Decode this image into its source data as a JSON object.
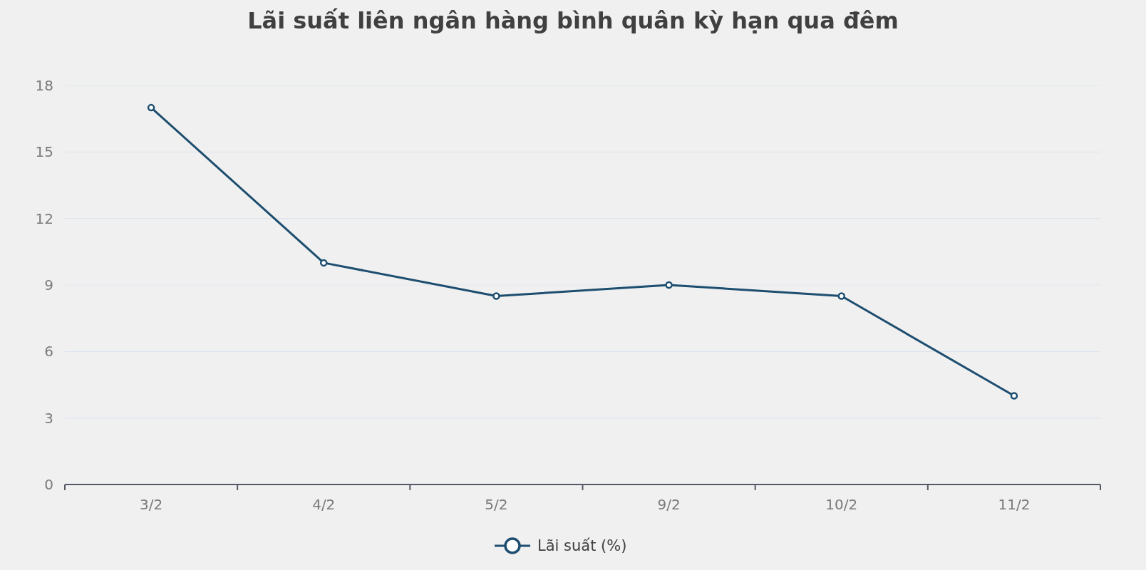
{
  "chart_data": {
    "type": "line",
    "title": "Lãi suất liên ngân hàng bình quân kỳ hạn qua đêm",
    "categories": [
      "3/2",
      "4/2",
      "5/2",
      "9/2",
      "10/2",
      "11/2"
    ],
    "series": [
      {
        "name": "Lãi suất (%)",
        "color": "#1d4e6f",
        "values": [
          17,
          10,
          8.5,
          9,
          8.5,
          4
        ]
      }
    ],
    "ylim": [
      0,
      18
    ],
    "yticks": [
      0,
      3,
      6,
      9,
      12,
      15,
      18
    ],
    "grid": "y",
    "legend": "bottom",
    "marker": "circle",
    "line_style": "solid"
  }
}
